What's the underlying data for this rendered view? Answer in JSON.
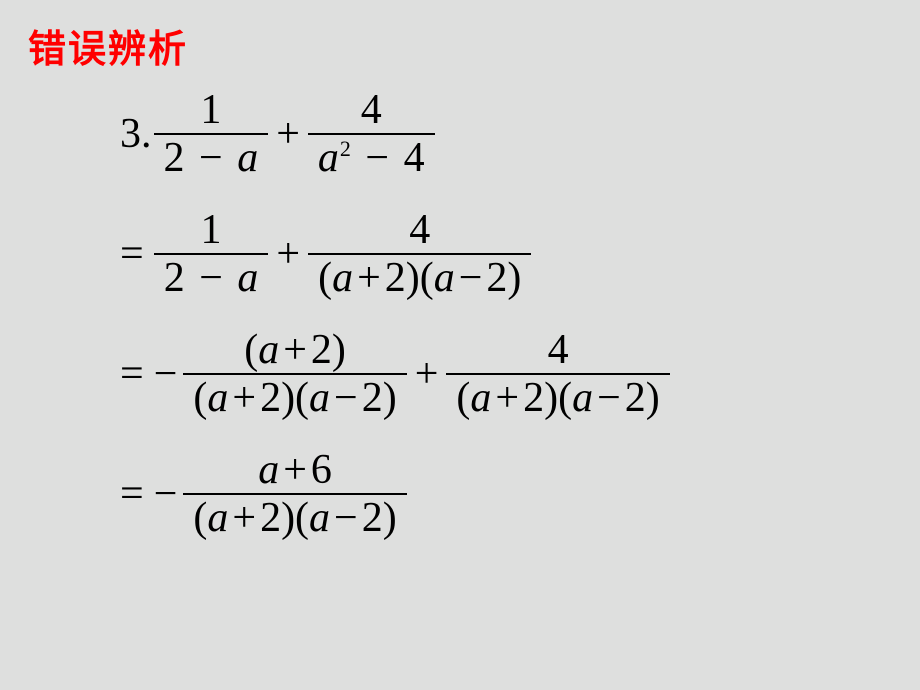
{
  "slide": {
    "background_color": "#dedfde",
    "heading": {
      "text": "错误辨析",
      "color": "#ff0000",
      "font_size_pt": 28
    },
    "math": {
      "text_color": "#000000",
      "bar_color": "#000000",
      "font_size_pt": 32,
      "problem_number": "3.",
      "variable": "a",
      "line1": {
        "term1": {
          "numerator": "1",
          "denominator_left": "2",
          "denominator_op": "−",
          "denominator_right": "a"
        },
        "op": "+",
        "term2": {
          "numerator": "4",
          "denominator_left": "a",
          "denom_exp": "2",
          "denominator_op": "−",
          "denominator_right": "4"
        }
      },
      "line2": {
        "leading": "=",
        "term1": {
          "numerator": "1",
          "denominator_left": "2",
          "denominator_op": "−",
          "denominator_right": "a"
        },
        "op": "+",
        "term2": {
          "numerator": "4",
          "denom_f1_l": "a",
          "denom_f1_op": "+",
          "denom_f1_r": "2",
          "denom_f2_l": "a",
          "denom_f2_op": "−",
          "denom_f2_r": "2"
        }
      },
      "line3": {
        "leading": "=",
        "unary": "−",
        "term1": {
          "num_f_l": "a",
          "num_f_op": "+",
          "num_f_r": "2",
          "denom_f1_l": "a",
          "denom_f1_op": "+",
          "denom_f1_r": "2",
          "denom_f2_l": "a",
          "denom_f2_op": "−",
          "denom_f2_r": "2"
        },
        "op": "+",
        "term2": {
          "numerator": "4",
          "denom_f1_l": "a",
          "denom_f1_op": "+",
          "denom_f1_r": "2",
          "denom_f2_l": "a",
          "denom_f2_op": "−",
          "denom_f2_r": "2"
        }
      },
      "line4": {
        "leading": "=",
        "unary": "−",
        "term": {
          "num_l": "a",
          "num_op": "+",
          "num_r": "6",
          "denom_f1_l": "a",
          "denom_f1_op": "+",
          "denom_f1_r": "2",
          "denom_f2_l": "a",
          "denom_f2_op": "−",
          "denom_f2_r": "2"
        }
      }
    }
  }
}
